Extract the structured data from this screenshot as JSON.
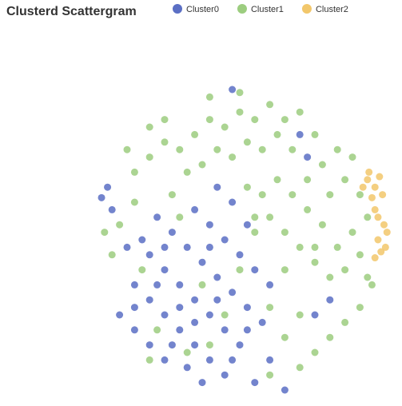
{
  "chart_data": {
    "type": "scatter",
    "title": "Clusterd Scattergram",
    "xlim": [
      -100,
      100
    ],
    "ylim": [
      -100,
      100
    ],
    "series": [
      {
        "name": "Cluster0",
        "color": "#5b6fc4",
        "x": [
          -60,
          -50,
          -40,
          -30,
          -20,
          -10,
          0,
          -70,
          -60,
          -50,
          -40,
          -30,
          -20,
          -10,
          -45,
          -35,
          -25,
          -15,
          -5,
          5,
          15,
          -55,
          -30,
          -20,
          -10,
          0,
          10,
          20,
          -75,
          -80,
          -70,
          -60,
          -50,
          -35,
          -25,
          -5,
          5,
          -40,
          -55,
          -65,
          -85,
          -88,
          -92,
          -5,
          -15,
          5,
          20,
          10,
          50,
          60,
          45,
          40,
          -5,
          30,
          -45,
          -15,
          -30,
          -50,
          -20,
          -70
        ],
        "values": [
          -10,
          -20,
          -30,
          -40,
          -50,
          -60,
          -70,
          -30,
          -40,
          -50,
          -60,
          -70,
          -80,
          -90,
          5,
          -5,
          -15,
          -25,
          -35,
          -45,
          -55,
          15,
          20,
          10,
          0,
          -10,
          -20,
          -30,
          -5,
          -50,
          -60,
          -70,
          -80,
          -85,
          -95,
          -80,
          -60,
          -45,
          -30,
          0,
          20,
          35,
          28,
          25,
          35,
          10,
          -80,
          -95,
          -50,
          -40,
          55,
          70,
          100,
          -100,
          -70,
          -40,
          -55,
          -5,
          -5,
          -45
        ]
      },
      {
        "name": "Cluster1",
        "color": "#9ccd7f",
        "x": [
          -60,
          -50,
          -40,
          -30,
          -20,
          -10,
          0,
          10,
          20,
          30,
          40,
          50,
          -70,
          -75,
          -35,
          -25,
          -15,
          -5,
          5,
          15,
          25,
          35,
          45,
          55,
          65,
          70,
          80,
          85,
          75,
          65,
          55,
          45,
          35,
          25,
          15,
          5,
          10,
          20,
          30,
          40,
          50,
          60,
          70,
          80,
          88,
          80,
          70,
          60,
          50,
          40,
          30,
          40,
          20,
          30,
          10,
          60,
          50,
          -80,
          -85,
          -90,
          -70,
          -45,
          -35,
          -55,
          -20,
          -10,
          -60,
          0,
          -25,
          -65,
          -40,
          -60,
          -50,
          20,
          85,
          75,
          -20,
          0
        ],
        "values": [
          55,
          65,
          60,
          70,
          80,
          75,
          85,
          80,
          90,
          80,
          85,
          70,
          45,
          60,
          45,
          50,
          60,
          55,
          65,
          60,
          70,
          60,
          40,
          50,
          60,
          40,
          30,
          15,
          5,
          -5,
          10,
          20,
          30,
          40,
          30,
          35,
          15,
          15,
          5,
          -5,
          -15,
          -25,
          -20,
          -10,
          -30,
          -45,
          -55,
          -65,
          -75,
          -85,
          -65,
          -50,
          -45,
          -20,
          5,
          30,
          -5,
          10,
          -10,
          5,
          25,
          30,
          -75,
          -60,
          -70,
          -50,
          -80,
          -20,
          -30,
          -20,
          15,
          75,
          80,
          -90,
          -25,
          55,
          95,
          98
        ]
      },
      {
        "name": "Cluster2",
        "color": "#f2c76b",
        "x": [
          85,
          90,
          95,
          88,
          82,
          93,
          90,
          96,
          92,
          98,
          94,
          90,
          97,
          86,
          92
        ],
        "values": [
          40,
          35,
          30,
          28,
          35,
          42,
          20,
          10,
          0,
          5,
          -8,
          -12,
          -5,
          45,
          15
        ]
      }
    ]
  }
}
